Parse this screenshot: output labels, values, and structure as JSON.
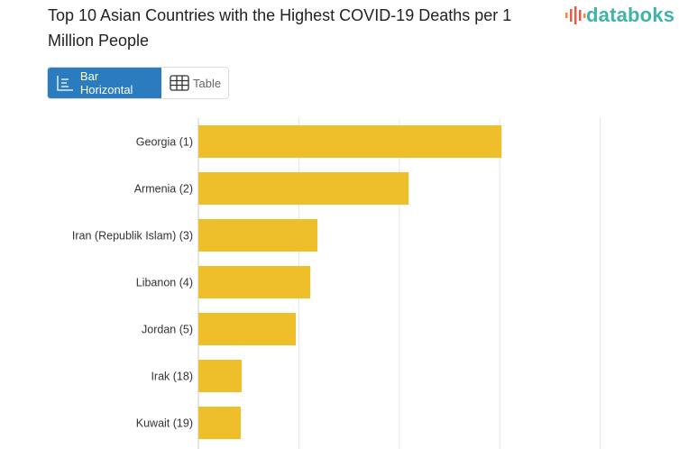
{
  "title": "Top 10 Asian Countries with the Highest COVID-19 Deaths per 1 Million People",
  "logo": "databoks",
  "tabs": [
    {
      "label": "Bar Horizontal",
      "icon": "bar-chart-icon",
      "active": true
    },
    {
      "label": "Table",
      "icon": "table-icon",
      "active": false
    }
  ],
  "colors": {
    "bar": "#efbe2b",
    "tab_active": "#2a7cbf",
    "logo": "#3fb3a8"
  },
  "chart_data": {
    "type": "bar",
    "orientation": "horizontal",
    "categories": [
      "Georgia (1)",
      "Armenia (2)",
      "Iran (Republik Islam) (3)",
      "Libanon (4)",
      "Jordan (5)",
      "Irak (18)",
      "Kuwait (19)"
    ],
    "values": [
      4226,
      2931,
      1660,
      1560,
      1358,
      604,
      591
    ],
    "xlim": [
      0,
      5600
    ],
    "grid": true,
    "title": "",
    "xlabel": "",
    "ylabel": ""
  }
}
